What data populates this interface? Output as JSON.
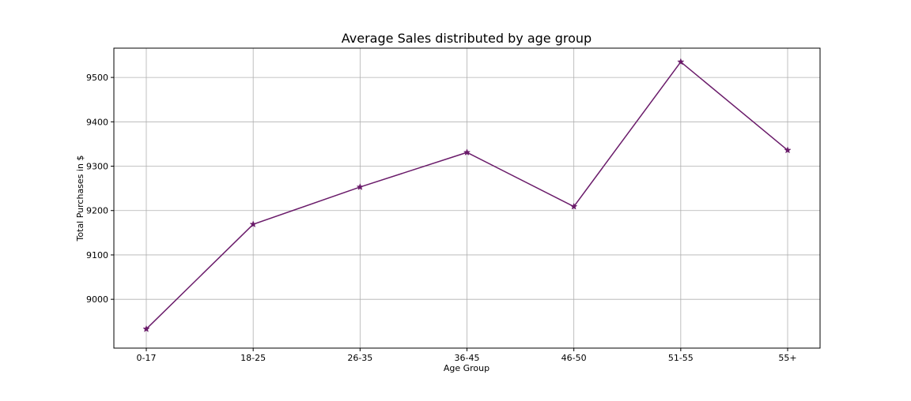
{
  "chart_data": {
    "type": "line",
    "title": "Average Sales distributed by age group",
    "xlabel": "Age Group",
    "ylabel": "Total Purchases in $",
    "categories": [
      "0-17",
      "18-25",
      "26-35",
      "36-45",
      "46-50",
      "51-55",
      "55+"
    ],
    "series": [
      {
        "values": [
          8933,
          9169,
          9253,
          9331,
          9209,
          9535,
          9336
        ],
        "color": "#6a1b6a",
        "marker": "star"
      }
    ],
    "ylim": [
      8890,
      9566
    ],
    "yticks": [
      9000,
      9100,
      9200,
      9300,
      9400,
      9500
    ],
    "grid": true,
    "legend": "none"
  }
}
